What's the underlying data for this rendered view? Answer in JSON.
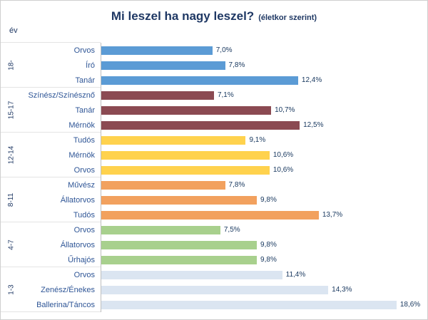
{
  "header": {
    "title": "Mi leszel ha nagy leszel?",
    "subtitle": "(életkor szerint)",
    "y_axis_unit": "év"
  },
  "chart_data": {
    "type": "bar",
    "orientation": "horizontal",
    "title": "Mi leszel ha nagy leszel?",
    "subtitle": "(életkor szerint)",
    "axis_unit_label": "év",
    "xlim": [
      0,
      20
    ],
    "value_suffix": "%",
    "groups": [
      {
        "age": "18-",
        "color": "#5B9BD5",
        "items": [
          {
            "label": "Orvos",
            "value": 7.0,
            "display": "7,0%"
          },
          {
            "label": "Író",
            "value": 7.8,
            "display": "7,8%"
          },
          {
            "label": "Tanár",
            "value": 12.4,
            "display": "12,4%"
          }
        ]
      },
      {
        "age": "15-17",
        "color": "#8B4A52",
        "items": [
          {
            "label": "Színész/Színésznő",
            "value": 7.1,
            "display": "7,1%"
          },
          {
            "label": "Tanár",
            "value": 10.7,
            "display": "10,7%"
          },
          {
            "label": "Mérnök",
            "value": 12.5,
            "display": "12,5%"
          }
        ]
      },
      {
        "age": "12-14",
        "color": "#FFD24D",
        "items": [
          {
            "label": "Tudós",
            "value": 9.1,
            "display": "9,1%"
          },
          {
            "label": "Mérnök",
            "value": 10.6,
            "display": "10,6%"
          },
          {
            "label": "Orvos",
            "value": 10.6,
            "display": "10,6%"
          }
        ]
      },
      {
        "age": "8-11",
        "color": "#F2A15E",
        "items": [
          {
            "label": "Művész",
            "value": 7.8,
            "display": "7,8%"
          },
          {
            "label": "Állatorvos",
            "value": 9.8,
            "display": "9,8%"
          },
          {
            "label": "Tudós",
            "value": 13.7,
            "display": "13,7%"
          }
        ]
      },
      {
        "age": "4-7",
        "color": "#A8D08D",
        "items": [
          {
            "label": "Orvos",
            "value": 7.5,
            "display": "7,5%"
          },
          {
            "label": "Állatorvos",
            "value": 9.8,
            "display": "9,8%"
          },
          {
            "label": "Űrhajós",
            "value": 9.8,
            "display": "9,8%"
          }
        ]
      },
      {
        "age": "1-3",
        "color": "#DBE5F1",
        "items": [
          {
            "label": "Orvos",
            "value": 11.4,
            "display": "11,4%"
          },
          {
            "label": "Zenész/Énekes",
            "value": 14.3,
            "display": "14,3%"
          },
          {
            "label": "Ballerina/Táncos",
            "value": 18.6,
            "display": "18,6%"
          }
        ]
      }
    ]
  },
  "colors": {
    "title": "#1F3864",
    "category_label": "#2E5596",
    "value_label": "#17375E",
    "axis_line": "#BFBFBF"
  }
}
